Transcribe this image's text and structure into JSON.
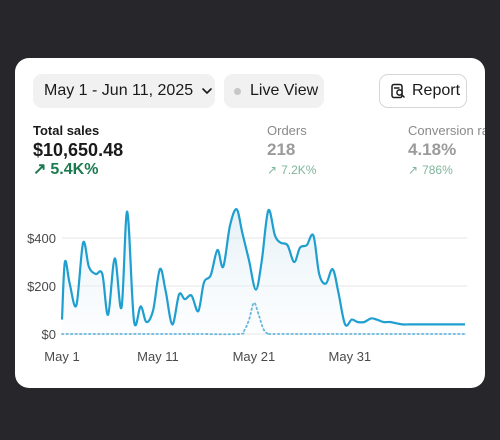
{
  "toolbar": {
    "date_range": "May 1 - Jun 11, 2025",
    "live_view": "Live View",
    "report": "Report"
  },
  "metrics": [
    {
      "label": "Total sales",
      "value": "$10,650.48",
      "delta": "5.4K%"
    },
    {
      "label": "Orders",
      "value": "218",
      "delta": "7.2K%"
    },
    {
      "label": "Conversion rate",
      "value": "4.18%",
      "delta": "786%"
    }
  ],
  "colors": {
    "series_current": "#1e9fd0",
    "series_previous": "#67b7da",
    "positive": "#1b7a4f"
  },
  "chart_data": {
    "type": "area",
    "ylim": [
      0,
      560
    ],
    "y_ticks": [
      "$0",
      "$200",
      "$400"
    ],
    "y_tick_values": [
      0,
      200,
      400
    ],
    "x_ticks": [
      "May 1",
      "May 11",
      "May 21",
      "May 31"
    ],
    "x_tick_days": [
      1,
      11,
      21,
      31
    ],
    "x_range": [
      1,
      43
    ],
    "series": [
      {
        "style": "solid",
        "x": [
          1,
          1.3,
          1.8,
          2.5,
          3.2,
          3.8,
          4.5,
          5.2,
          5.8,
          6.5,
          7.2,
          7.8,
          8.5,
          9.2,
          9.8,
          10.5,
          11.2,
          11.8,
          12.5,
          13.2,
          13.8,
          14.5,
          15.2,
          15.8,
          16.5,
          17.2,
          17.8,
          18.5,
          19.2,
          19.8,
          20.5,
          21.2,
          21.8,
          22.5,
          23.2,
          23.8,
          24.5,
          25.2,
          25.8,
          26.5,
          27.2,
          27.8,
          28.5,
          29.2,
          29.8,
          30.5,
          31.2,
          31.8,
          32.5,
          33.2,
          33.8,
          34.5,
          35.2,
          35.8,
          36.5,
          37.2,
          37.8,
          38.5,
          39.2,
          39.8,
          40.5,
          41.2,
          41.8,
          42.5,
          43
        ],
        "y": [
          60,
          300,
          210,
          120,
          380,
          280,
          250,
          250,
          80,
          315,
          110,
          510,
          55,
          115,
          50,
          100,
          270,
          180,
          40,
          165,
          145,
          160,
          95,
          215,
          245,
          350,
          280,
          450,
          520,
          420,
          305,
          185,
          300,
          515,
          410,
          380,
          370,
          300,
          360,
          370,
          410,
          250,
          210,
          270,
          175,
          40,
          60,
          50,
          50,
          65,
          60,
          50,
          50,
          45,
          40,
          40,
          40,
          40,
          40,
          40,
          40,
          40,
          40,
          40,
          40
        ]
      },
      {
        "style": "dotted",
        "x": [
          1,
          5,
          10,
          15,
          19.5,
          20,
          20.5,
          21,
          21.5,
          22,
          22.5,
          23,
          28,
          33,
          38,
          43
        ],
        "y": [
          0,
          0,
          0,
          0,
          0,
          15,
          60,
          130,
          80,
          20,
          0,
          0,
          0,
          0,
          0,
          0
        ]
      }
    ]
  }
}
